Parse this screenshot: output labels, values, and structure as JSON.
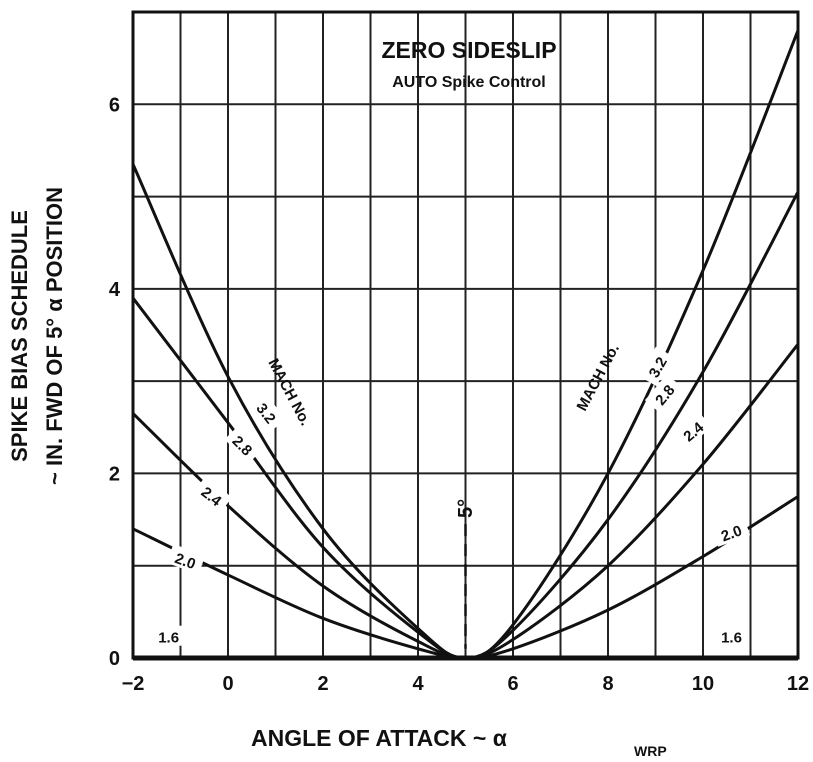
{
  "chart_data": {
    "type": "line",
    "title": "ZERO SIDESLIP",
    "subtitle": "AUTO Spike Control",
    "xlabel_main": "ANGLE OF ATTACK ~ α",
    "xlabel_sub": "WRP",
    "ylabel_line1": "SPIKE BIAS SCHEDULE",
    "ylabel_line2": "~ IN. FWD OF 5° α POSITION",
    "xlim": [
      -2,
      12
    ],
    "ylim": [
      0,
      7
    ],
    "xticks": [
      "−2",
      "0",
      "2",
      "4",
      "6",
      "8",
      "10",
      "12"
    ],
    "yticks": [
      "0",
      "2",
      "4",
      "6"
    ],
    "grid": true,
    "center_marker_label": "5°",
    "series": [
      {
        "name": "1.6",
        "x": [
          -2,
          12
        ],
        "y": [
          0,
          0
        ]
      },
      {
        "name": "2.0",
        "x": [
          -2,
          0,
          2,
          4,
          5,
          6,
          8,
          10,
          12
        ],
        "y": [
          1.4,
          0.9,
          0.43,
          0.1,
          0.0,
          0.1,
          0.52,
          1.1,
          1.75
        ]
      },
      {
        "name": "2.4",
        "x": [
          -2,
          0,
          2,
          4,
          5,
          6,
          8,
          10,
          12
        ],
        "y": [
          2.65,
          1.65,
          0.78,
          0.18,
          0.0,
          0.2,
          1.0,
          2.1,
          3.4
        ]
      },
      {
        "name": "2.8",
        "x": [
          -2,
          0,
          2,
          4,
          5,
          6,
          8,
          10,
          12
        ],
        "y": [
          3.9,
          2.55,
          1.2,
          0.28,
          0.0,
          0.3,
          1.5,
          3.1,
          5.05
        ]
      },
      {
        "name": "3.2",
        "x": [
          -2,
          0,
          2,
          4,
          5,
          6,
          8,
          10,
          12
        ],
        "y": [
          5.35,
          3.05,
          1.4,
          0.32,
          0.0,
          0.36,
          2.0,
          4.2,
          6.8
        ]
      }
    ],
    "left_group_label": "MACH No.",
    "right_group_label": "MACH No."
  }
}
